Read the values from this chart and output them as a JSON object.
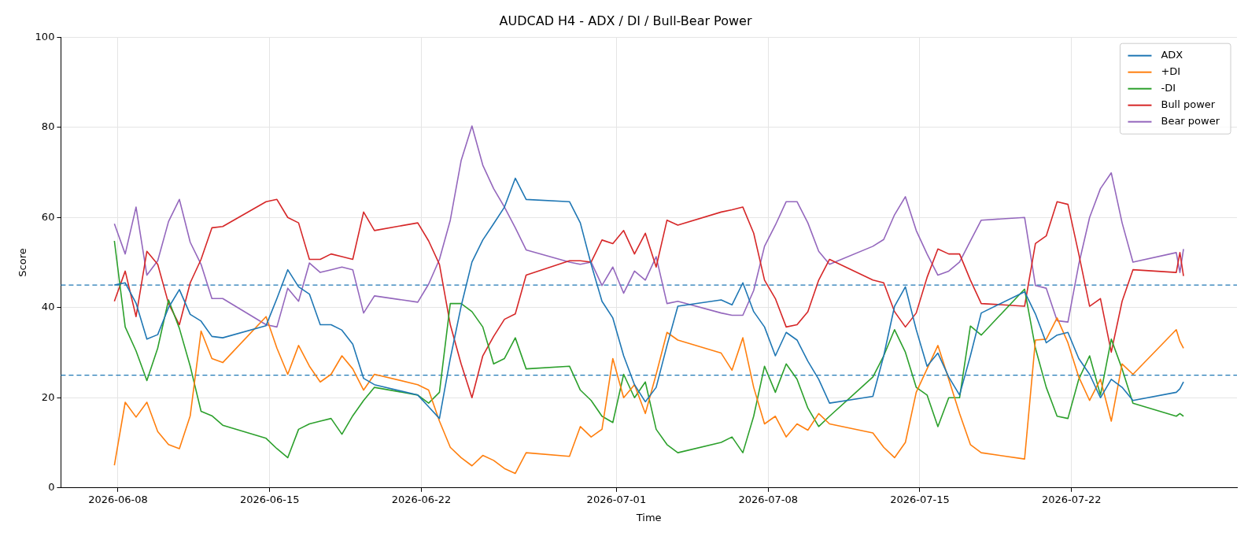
{
  "chart_data": {
    "type": "line",
    "title": "AUDCAD H4 - ADX / DI / Bull-Bear Power",
    "xlabel": "Time",
    "ylabel": "Score",
    "x": [
      "2026-06-07T20:00",
      "2026-06-08T08:00",
      "2026-06-08T20:00",
      "2026-06-09T08:00",
      "2026-06-09T20:00",
      "2026-06-10T08:00",
      "2026-06-10T20:00",
      "2026-06-11T08:00",
      "2026-06-11T20:00",
      "2026-06-12T08:00",
      "2026-06-12T20:00",
      "2026-06-14T20:00",
      "2026-06-15T08:00",
      "2026-06-15T20:00",
      "2026-06-16T08:00",
      "2026-06-16T20:00",
      "2026-06-17T08:00",
      "2026-06-17T20:00",
      "2026-06-18T08:00",
      "2026-06-18T20:00",
      "2026-06-19T08:00",
      "2026-06-19T20:00",
      "2026-06-21T20:00",
      "2026-06-22T08:00",
      "2026-06-22T20:00",
      "2026-06-23T08:00",
      "2026-06-23T20:00",
      "2026-06-24T08:00",
      "2026-06-24T20:00",
      "2026-06-25T08:00",
      "2026-06-25T20:00",
      "2026-06-26T08:00",
      "2026-06-26T20:00",
      "2026-06-28T20:00",
      "2026-06-29T08:00",
      "2026-06-29T20:00",
      "2026-06-30T08:00",
      "2026-06-30T20:00",
      "2026-07-01T08:00",
      "2026-07-01T20:00",
      "2026-07-02T08:00",
      "2026-07-02T20:00",
      "2026-07-03T08:00",
      "2026-07-03T20:00",
      "2026-07-05T20:00",
      "2026-07-06T08:00",
      "2026-07-06T20:00",
      "2026-07-07T08:00",
      "2026-07-07T20:00",
      "2026-07-08T08:00",
      "2026-07-08T20:00",
      "2026-07-09T08:00",
      "2026-07-09T20:00",
      "2026-07-10T08:00",
      "2026-07-10T20:00",
      "2026-07-12T20:00",
      "2026-07-13T08:00",
      "2026-07-13T20:00",
      "2026-07-14T08:00",
      "2026-07-14T20:00",
      "2026-07-15T08:00",
      "2026-07-15T20:00",
      "2026-07-16T08:00",
      "2026-07-16T20:00",
      "2026-07-17T08:00",
      "2026-07-17T20:00",
      "2026-07-19T20:00",
      "2026-07-20T08:00",
      "2026-07-20T20:00",
      "2026-07-21T08:00",
      "2026-07-21T20:00",
      "2026-07-22T08:00",
      "2026-07-22T20:00",
      "2026-07-23T08:00",
      "2026-07-23T20:00",
      "2026-07-24T08:00",
      "2026-07-24T20:00",
      "2026-07-26T20:00",
      "2026-07-27T00:00",
      "2026-07-27T04:00"
    ],
    "series": [
      {
        "name": "ADX",
        "color": "#1f77b4",
        "values": [
          45.0,
          45.5,
          41,
          33,
          34,
          40,
          44,
          38.5,
          37,
          33.6,
          33.3,
          36,
          42,
          48.4,
          44.6,
          43,
          36.2,
          36.2,
          35,
          31.9,
          24.3,
          22.9,
          20.6,
          18,
          15.4,
          28.7,
          40.3,
          50.1,
          55,
          58.6,
          62.3,
          68.7,
          64,
          63.5,
          58.8,
          49.6,
          41.4,
          37.7,
          29.3,
          22.9,
          19.1,
          22.3,
          31.6,
          40.3,
          41.7,
          40.6,
          45.5,
          39.1,
          35.7,
          29.3,
          34.5,
          32.8,
          28.1,
          24.1,
          18.8,
          20.3,
          29.3,
          40.3,
          44.6,
          35.1,
          27,
          29.9,
          24.6,
          20.6,
          29.3,
          38.8,
          43.5,
          38.6,
          32.2,
          33.9,
          34.5,
          28.7,
          25.2,
          20,
          24.1,
          22.3,
          19.4,
          21.2,
          22,
          23.5
        ]
      },
      {
        "name": "+DI",
        "color": "#ff7f0e",
        "values": [
          5,
          19,
          15.7,
          19,
          12.5,
          9.6,
          8.7,
          16,
          34.8,
          28.7,
          27.8,
          38,
          31,
          25.2,
          31.6,
          27,
          23.5,
          25.2,
          29.3,
          26.4,
          21.7,
          25.2,
          22.9,
          21.7,
          14.8,
          9,
          6.7,
          4.9,
          7.2,
          6.1,
          4.3,
          3.2,
          7.8,
          7,
          13.6,
          11.3,
          13,
          28.7,
          20,
          22.9,
          16.5,
          25.2,
          34.5,
          32.8,
          29.9,
          26.1,
          33.3,
          22.3,
          14.2,
          15.9,
          11.3,
          14.2,
          12.8,
          16.5,
          14.2,
          12.2,
          9,
          6.7,
          10.1,
          21.2,
          26.4,
          31.6,
          24.1,
          16.5,
          9.6,
          7.8,
          6.4,
          32.8,
          33,
          37.7,
          32.2,
          24.6,
          19.4,
          24.1,
          14.8,
          27.5,
          25.2,
          35.1,
          32.5,
          31
        ]
      },
      {
        "name": "-DI",
        "color": "#2ca02c",
        "values": [
          54.8,
          35.7,
          30.4,
          23.8,
          31,
          41.7,
          35.4,
          27,
          17,
          16,
          13.9,
          11,
          8.7,
          6.7,
          13,
          14.2,
          14.8,
          15.4,
          11.9,
          16,
          19.4,
          22.3,
          20.6,
          18.8,
          21.2,
          40.9,
          40.9,
          39.1,
          35.7,
          27.5,
          28.7,
          33.3,
          26.4,
          27,
          21.7,
          19.4,
          15.9,
          14.5,
          25.2,
          20,
          23.5,
          13,
          9.6,
          7.8,
          10.1,
          11.3,
          7.8,
          15.9,
          27,
          21.2,
          27.5,
          24.1,
          17.7,
          13.6,
          15.9,
          24.6,
          29.3,
          35.1,
          30.1,
          22.3,
          20.6,
          13.6,
          20,
          20,
          35.9,
          33.9,
          44.1,
          31,
          22.3,
          15.9,
          15.4,
          24.1,
          29.3,
          20.6,
          33,
          26.4,
          18.8,
          15.9,
          16.5,
          15.9
        ]
      },
      {
        "name": "Bull power",
        "color": "#d62728",
        "values": [
          41.4,
          48.1,
          38,
          52.5,
          49.6,
          40.9,
          36.2,
          45.5,
          50.7,
          57.7,
          58,
          63.5,
          64,
          60,
          58.8,
          50.7,
          50.7,
          51.9,
          51.3,
          50.7,
          61.2,
          57.1,
          58.8,
          54.8,
          49.6,
          36.2,
          27.5,
          20,
          29.3,
          33.6,
          37.4,
          38.6,
          47.2,
          50.4,
          50.4,
          50.1,
          55,
          54.2,
          57.1,
          51.9,
          56.5,
          49,
          59.4,
          58.3,
          61.2,
          61.7,
          62.3,
          56.5,
          46.1,
          42,
          35.7,
          36.2,
          39.1,
          46.1,
          50.7,
          46.1,
          45.5,
          39.1,
          35.7,
          38.8,
          46.7,
          53,
          51.9,
          51.9,
          46.1,
          40.9,
          40.3,
          54.2,
          55.9,
          63.5,
          62.9,
          51.9,
          40.3,
          42,
          30.1,
          41.4,
          48.4,
          47.8,
          52.2,
          47
        ]
      },
      {
        "name": "Bear power",
        "color": "#9467bd",
        "values": [
          58.6,
          51.9,
          62.3,
          47.2,
          50.4,
          59.1,
          64,
          54.5,
          49.6,
          42,
          42,
          36.2,
          35.7,
          44.3,
          41.4,
          49.9,
          47.8,
          48.4,
          49,
          48.4,
          38.8,
          42.6,
          41.2,
          45.2,
          50.7,
          59.4,
          72.6,
          80.3,
          71.6,
          66.4,
          62.3,
          57.7,
          52.8,
          50.1,
          49.6,
          50.1,
          44.9,
          49,
          43.2,
          48.1,
          46.1,
          51.3,
          40.9,
          41.4,
          38.8,
          38.3,
          38.3,
          43.8,
          53.6,
          58.3,
          63.5,
          63.5,
          58.8,
          52.5,
          49.6,
          53.6,
          55.1,
          60.6,
          64.6,
          57.1,
          51.9,
          47.2,
          48.1,
          50.1,
          54.8,
          59.4,
          60,
          44.9,
          44.3,
          37.1,
          36.8,
          49.6,
          60,
          66.4,
          69.9,
          58.8,
          50.1,
          52.2,
          47.8,
          53
        ]
      }
    ],
    "xlim": [
      "2026-06-05T08:48",
      "2026-07-29T15:12"
    ],
    "xticks": [
      "2026-06-08",
      "2026-06-15",
      "2026-06-22",
      "2026-07-01",
      "2026-07-08",
      "2026-07-15",
      "2026-07-22"
    ],
    "ylim": [
      0,
      100
    ],
    "yticks": [
      0,
      20,
      40,
      60,
      80,
      100
    ],
    "ref_lines": [
      {
        "axis": "y",
        "value": 45,
        "color": "#1f77b4",
        "line_style": "dashed"
      },
      {
        "axis": "y",
        "value": 25,
        "color": "#1f77b4",
        "line_style": "dashed"
      }
    ],
    "grid": true,
    "legend": "top right",
    "line_style": "solid",
    "marker": "none"
  }
}
